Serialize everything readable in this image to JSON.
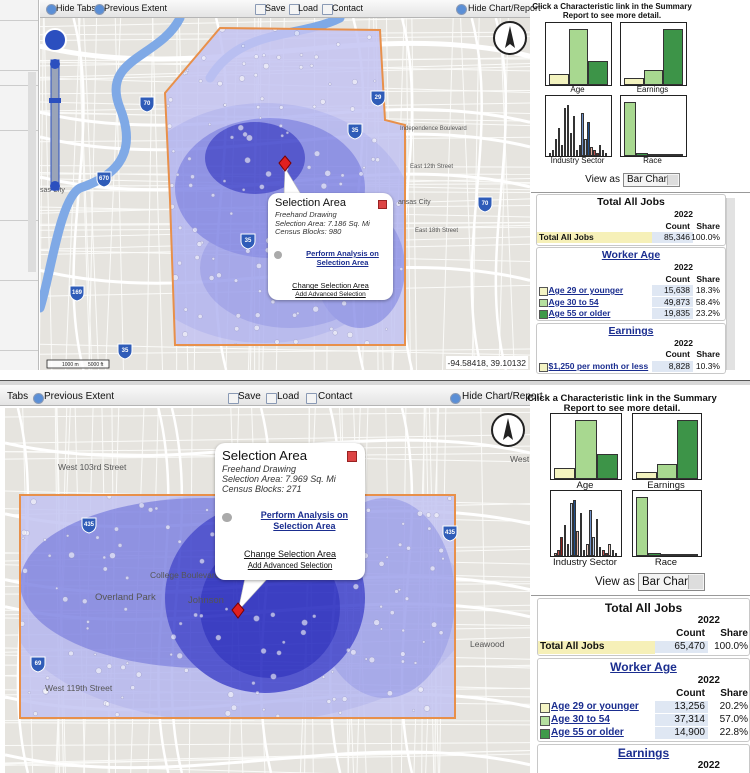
{
  "panels": [
    {
      "toolbar": {
        "hide_tabs": "Hide Tabs",
        "previous_extent": "Previous Extent",
        "save": "Save",
        "load": "Load",
        "contact": "Contact",
        "hide_chart_report": "Hide Chart/Report"
      },
      "map": {
        "labels": [
          "sas City",
          "ansas City",
          "Independence Boulevard",
          "East 12th Street",
          "East 18th Street"
        ],
        "shields": [
          "70",
          "29",
          "35",
          "670",
          "35",
          "70",
          "169",
          "35"
        ],
        "coordinates": "-94.58418, 39.10132",
        "scale": [
          "1000 m",
          "5000 ft"
        ]
      },
      "popup": {
        "title": "Selection Area",
        "method": "Freehand Drawing",
        "area": "Selection Area: 7.186 Sq. Mi",
        "blocks": "Census Blocks: 980",
        "analyze": "Perform Analysis on Selection Area",
        "change": "Change Selection Area",
        "advanced": "Add Advanced Selection"
      },
      "sidebar": {
        "instructions": "Click a Characteristic link in the Summary Report to see more detail.",
        "charts": [
          "Age",
          "Earnings",
          "Industry Sector",
          "Race"
        ],
        "view_as": "View as",
        "view_option": "Bar Chart"
      },
      "report": [
        {
          "title": "Total All Jobs",
          "year": "2022",
          "columns": [
            "Count",
            "Share"
          ],
          "rows": [
            [
              "Total All Jobs",
              "85,346",
              "100.0%"
            ]
          ]
        },
        {
          "title": "Worker Age",
          "year": "2022",
          "columns": [
            "Count",
            "Share"
          ],
          "rows": [
            [
              "Age 29 or younger",
              "15,638",
              "18.3%"
            ],
            [
              "Age 30 to 54",
              "49,873",
              "58.4%"
            ],
            [
              "Age 55 or older",
              "19,835",
              "23.2%"
            ]
          ]
        },
        {
          "title": "Earnings",
          "year": "2022",
          "columns": [
            "Count",
            "Share"
          ],
          "rows": [
            [
              "$1,250 per month or less",
              "8,828",
              "10.3%"
            ]
          ]
        }
      ]
    },
    {
      "toolbar": {
        "hide_tabs": "Tabs",
        "previous_extent": "Previous Extent",
        "save": "Save",
        "load": "Load",
        "contact": "Contact",
        "hide_chart_report": "Hide Chart/Report"
      },
      "map": {
        "labels": [
          "West 103rd Street",
          "College Boulevard",
          "Overland Park",
          "Johnson",
          "Leawood",
          "West 119th Street",
          "West"
        ],
        "shields": [
          "435",
          "435",
          "69"
        ]
      },
      "popup": {
        "title": "Selection Area",
        "method": "Freehand Drawing",
        "area": "Selection Area: 7.969 Sq. Mi",
        "blocks": "Census Blocks: 271",
        "analyze": "Perform Analysis on Selection Area",
        "change": "Change Selection Area",
        "advanced": "Add Advanced Selection"
      },
      "sidebar": {
        "instructions": "Click a Characteristic link in the Summary Report to see more detail.",
        "charts": [
          "Age",
          "Earnings",
          "Industry Sector",
          "Race"
        ],
        "view_as": "View as",
        "view_option": "Bar Chart"
      },
      "report": [
        {
          "title": "Total All Jobs",
          "year": "2022",
          "columns": [
            "Count",
            "Share"
          ],
          "rows": [
            [
              "Total All Jobs",
              "65,470",
              "100.0%"
            ]
          ]
        },
        {
          "title": "Worker Age",
          "year": "2022",
          "columns": [
            "Count",
            "Share"
          ],
          "rows": [
            [
              "Age 29 or younger",
              "13,256",
              "20.2%"
            ],
            [
              "Age 30 to 54",
              "37,314",
              "57.0%"
            ],
            [
              "Age 55 or older",
              "14,900",
              "22.8%"
            ]
          ]
        },
        {
          "title": "Earnings",
          "year": "2022"
        }
      ]
    }
  ]
}
